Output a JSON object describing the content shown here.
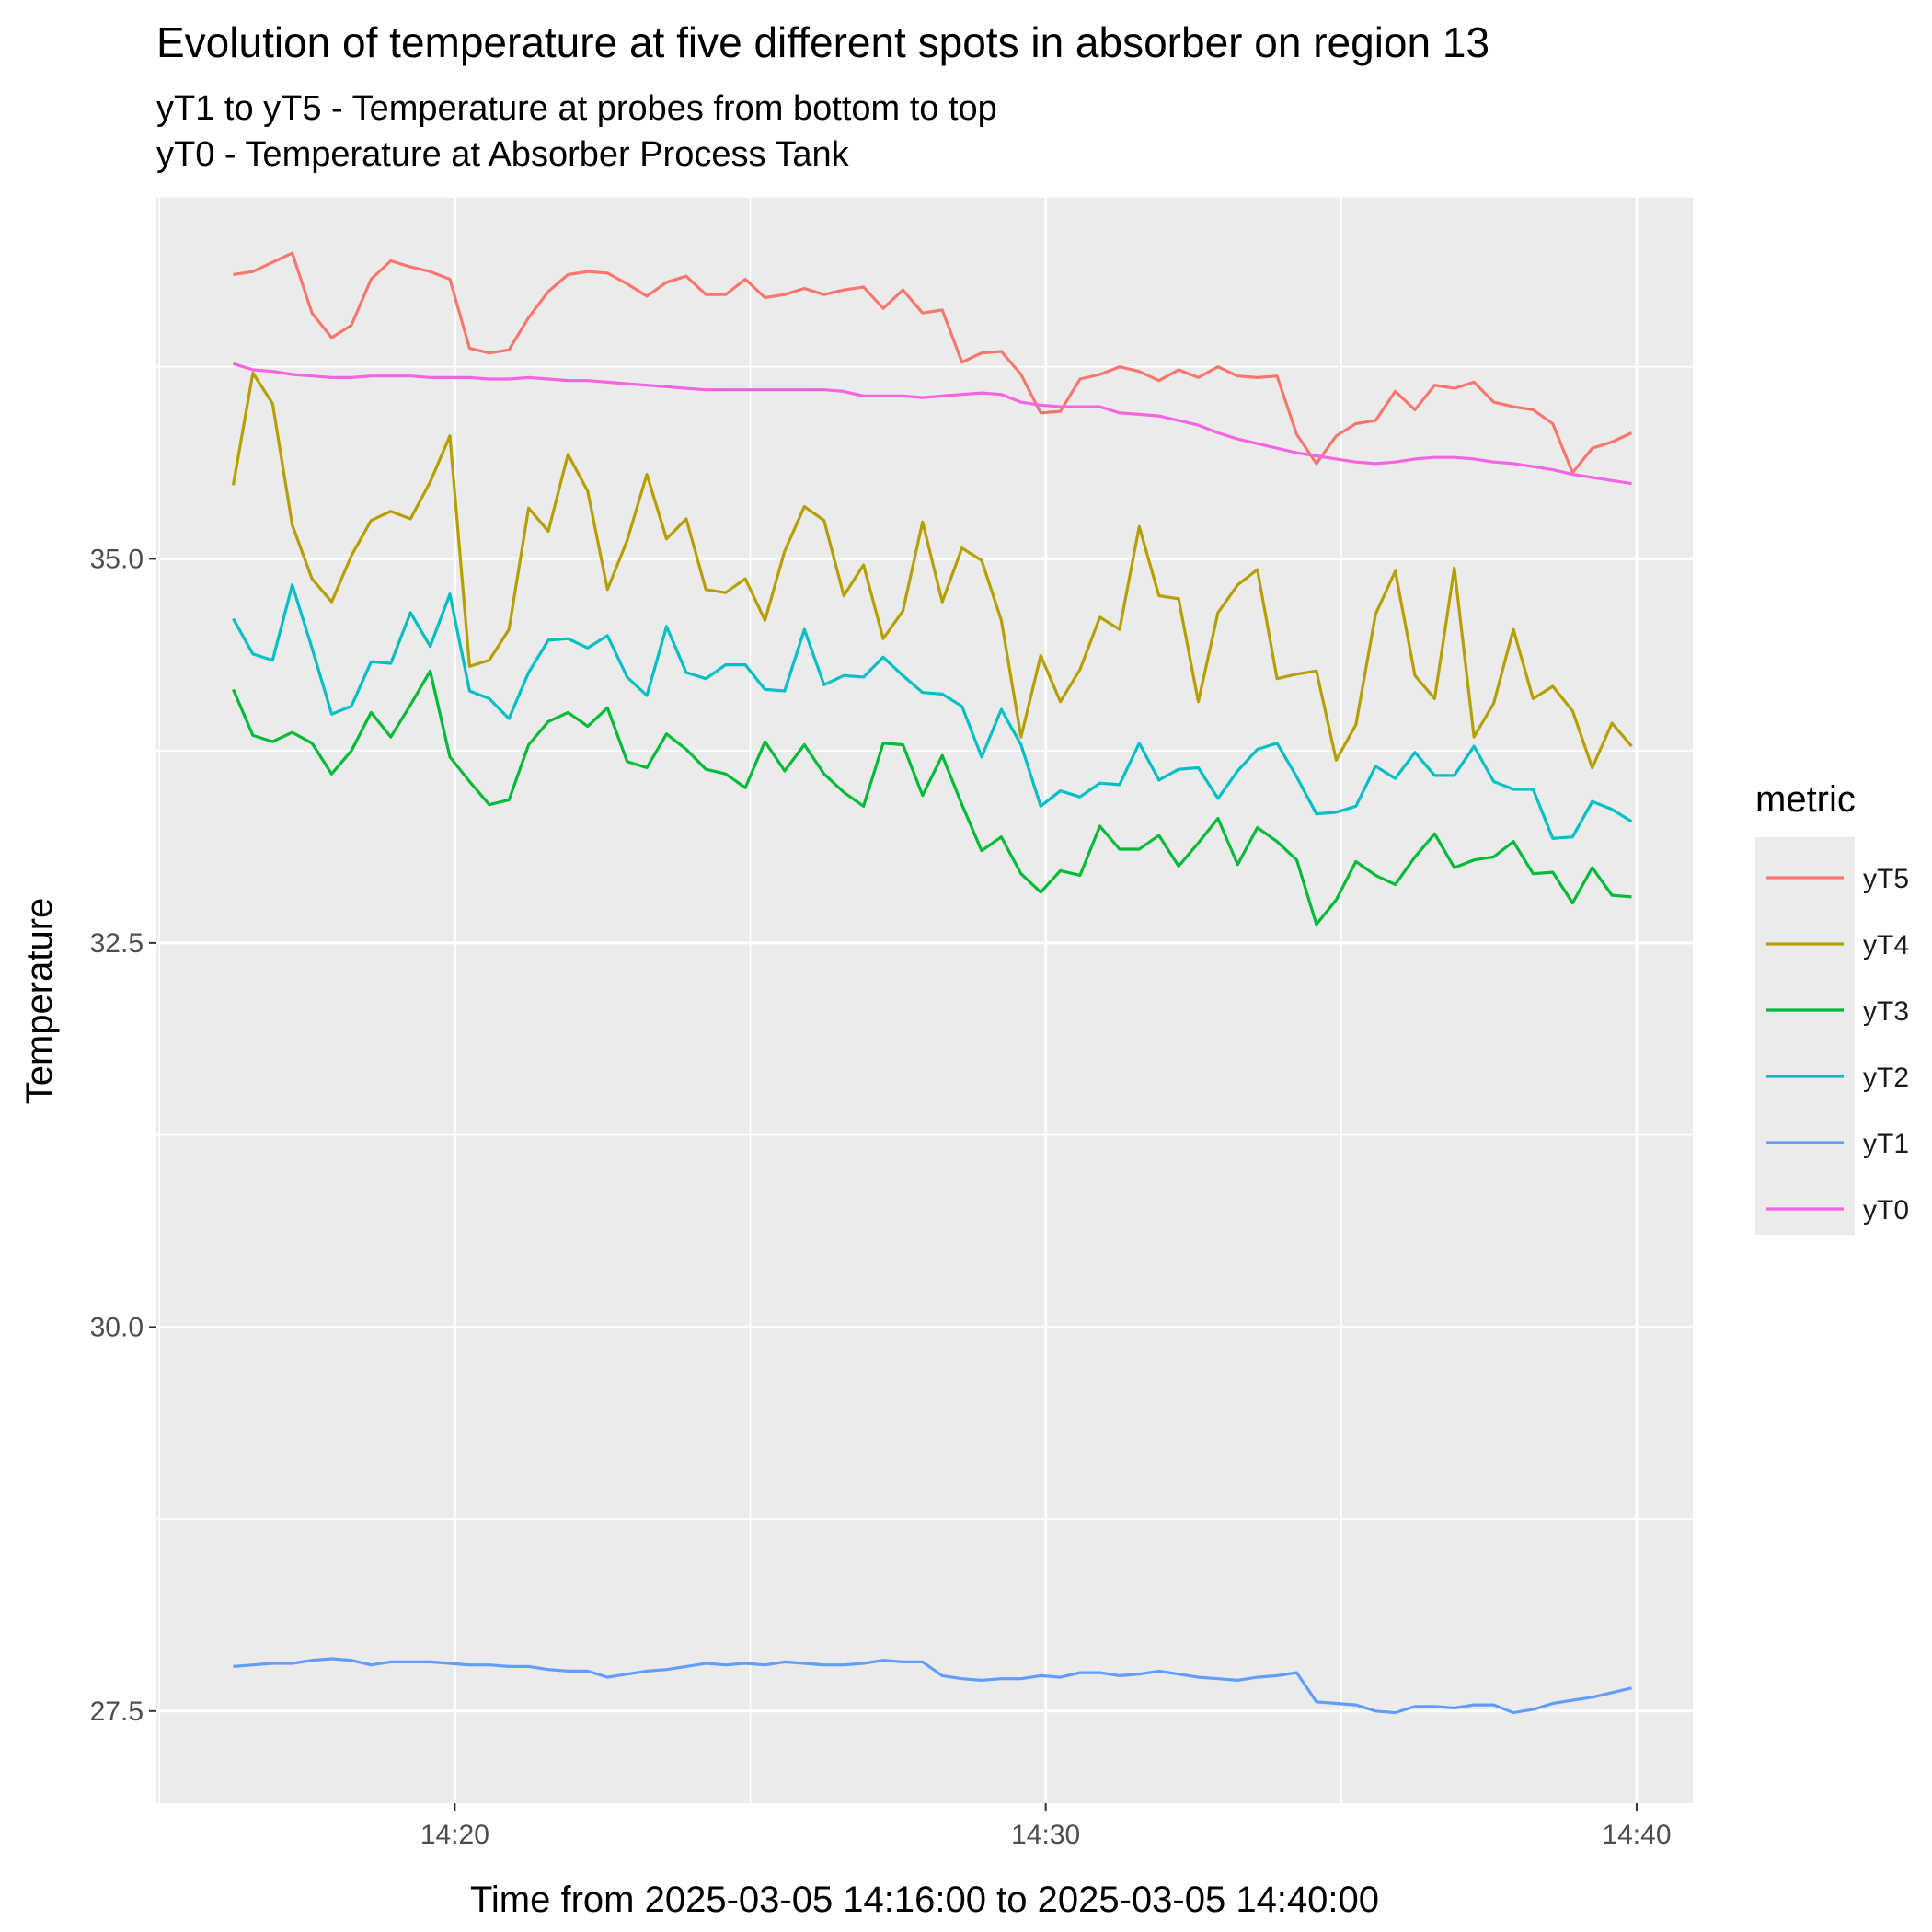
{
  "chart_data": {
    "type": "line",
    "title": "Evolution of temperature at five different spots in absorber on region 13",
    "subtitle_lines": [
      "yT1 to yT5 - Temperature at probes from bottom to top",
      "yT0 - Temperature at Absorber Process Tank"
    ],
    "xlabel": "Time from 2025-03-05 14:16:00 to 2025-03-05 14:40:00",
    "ylabel": "Temperature",
    "xlim_minutes": [
      14.95,
      40.95
    ],
    "xticks": [
      {
        "value": 20,
        "label": "14:20"
      },
      {
        "value": 30,
        "label": "14:30"
      },
      {
        "value": 40,
        "label": "14:40"
      }
    ],
    "ylim": [
      26.9,
      37.35
    ],
    "yticks": [
      {
        "value": 27.5,
        "label": "27.5"
      },
      {
        "value": 30.0,
        "label": "30.0"
      },
      {
        "value": 32.5,
        "label": "32.5"
      },
      {
        "value": 35.0,
        "label": "35.0"
      }
    ],
    "grid": true,
    "legend_title": "metric",
    "legend_position": "right",
    "x_start_minute": 16.25,
    "x_step_minute": 0.3333,
    "series": [
      {
        "name": "yT5",
        "color": "#F8766D",
        "values": [
          36.85,
          36.87,
          36.93,
          36.99,
          36.6,
          36.44,
          36.52,
          36.82,
          36.94,
          36.9,
          36.87,
          36.82,
          36.37,
          36.34,
          36.36,
          36.57,
          36.74,
          36.85,
          36.87,
          36.86,
          36.79,
          36.71,
          36.8,
          36.84,
          36.72,
          36.72,
          36.82,
          36.7,
          36.72,
          36.76,
          36.72,
          36.75,
          36.77,
          36.63,
          36.75,
          36.6,
          36.62,
          36.28,
          36.34,
          36.35,
          36.2,
          35.95,
          35.96,
          36.17,
          36.2,
          36.25,
          36.22,
          36.16,
          36.23,
          36.18,
          36.25,
          36.19,
          36.18,
          36.19,
          35.81,
          35.62,
          35.8,
          35.88,
          35.9,
          36.09,
          35.97,
          36.13,
          36.11,
          36.15,
          36.02,
          35.99,
          35.97,
          35.88,
          35.56,
          35.72,
          35.76,
          35.82
        ]
      },
      {
        "name": "yT4",
        "color": "#B79F00",
        "values": [
          35.48,
          36.21,
          36.01,
          35.22,
          34.87,
          34.72,
          35.02,
          35.25,
          35.31,
          35.26,
          35.5,
          35.8,
          34.3,
          34.34,
          34.54,
          35.33,
          35.18,
          35.68,
          35.44,
          34.8,
          35.12,
          35.55,
          35.13,
          35.26,
          34.8,
          34.78,
          34.87,
          34.6,
          35.05,
          35.34,
          35.25,
          34.76,
          34.96,
          34.48,
          34.66,
          35.24,
          34.72,
          35.07,
          34.99,
          34.6,
          33.84,
          34.37,
          34.07,
          34.28,
          34.62,
          34.54,
          35.21,
          34.76,
          34.74,
          34.07,
          34.65,
          34.83,
          34.93,
          34.22,
          34.25,
          34.27,
          33.69,
          33.92,
          34.64,
          34.92,
          34.24,
          34.09,
          34.94,
          33.84,
          34.06,
          34.54,
          34.09,
          34.17,
          34.01,
          33.64,
          33.93,
          33.78
        ]
      },
      {
        "name": "yT3",
        "color": "#00BA38",
        "values": [
          34.15,
          33.85,
          33.81,
          33.87,
          33.8,
          33.6,
          33.75,
          34.0,
          33.84,
          34.05,
          34.27,
          33.71,
          33.55,
          33.4,
          33.43,
          33.79,
          33.94,
          34.0,
          33.91,
          34.03,
          33.68,
          33.64,
          33.86,
          33.76,
          33.63,
          33.6,
          33.51,
          33.81,
          33.62,
          33.79,
          33.6,
          33.48,
          33.39,
          33.8,
          33.79,
          33.46,
          33.72,
          33.4,
          33.1,
          33.19,
          32.95,
          32.83,
          32.97,
          32.94,
          33.26,
          33.11,
          33.11,
          33.2,
          33.0,
          33.15,
          33.31,
          33.01,
          33.25,
          33.16,
          33.04,
          32.62,
          32.78,
          33.03,
          32.94,
          32.88,
          33.06,
          33.21,
          32.99,
          33.04,
          33.06,
          33.16,
          32.95,
          32.96,
          32.76,
          32.99,
          32.81,
          32.8
        ]
      },
      {
        "name": "yT2",
        "color": "#00BFC4",
        "values": [
          34.61,
          34.38,
          34.34,
          34.83,
          34.42,
          33.99,
          34.04,
          34.33,
          34.32,
          34.65,
          34.43,
          34.77,
          34.14,
          34.09,
          33.96,
          34.26,
          34.47,
          34.48,
          34.42,
          34.5,
          34.23,
          34.11,
          34.56,
          34.26,
          34.22,
          34.31,
          34.31,
          34.15,
          34.14,
          34.54,
          34.18,
          34.24,
          34.23,
          34.36,
          34.24,
          34.13,
          34.12,
          34.04,
          33.71,
          34.02,
          33.79,
          33.39,
          33.49,
          33.45,
          33.54,
          33.53,
          33.8,
          33.56,
          33.63,
          33.64,
          33.44,
          33.62,
          33.76,
          33.8,
          33.58,
          33.34,
          33.35,
          33.39,
          33.65,
          33.57,
          33.74,
          33.59,
          33.59,
          33.78,
          33.55,
          33.5,
          33.5,
          33.18,
          33.19,
          33.42,
          33.37,
          33.29
        ]
      },
      {
        "name": "yT1",
        "color": "#619CFF",
        "values": [
          27.79,
          27.8,
          27.81,
          27.81,
          27.83,
          27.84,
          27.83,
          27.8,
          27.82,
          27.82,
          27.82,
          27.81,
          27.8,
          27.8,
          27.79,
          27.79,
          27.77,
          27.76,
          27.76,
          27.72,
          27.74,
          27.76,
          27.77,
          27.79,
          27.81,
          27.8,
          27.81,
          27.8,
          27.82,
          27.81,
          27.8,
          27.8,
          27.81,
          27.83,
          27.82,
          27.82,
          27.73,
          27.71,
          27.7,
          27.71,
          27.71,
          27.73,
          27.72,
          27.75,
          27.75,
          27.73,
          27.74,
          27.76,
          27.74,
          27.72,
          27.71,
          27.7,
          27.72,
          27.73,
          27.75,
          27.56,
          27.55,
          27.54,
          27.5,
          27.49,
          27.53,
          27.53,
          27.52,
          27.54,
          27.54,
          27.49,
          27.51,
          27.55,
          27.57,
          27.59,
          27.62,
          27.65
        ]
      },
      {
        "name": "yT0",
        "color": "#F564E3",
        "values": [
          36.27,
          36.23,
          36.22,
          36.2,
          36.19,
          36.18,
          36.18,
          36.19,
          36.19,
          36.19,
          36.18,
          36.18,
          36.18,
          36.17,
          36.17,
          36.18,
          36.17,
          36.16,
          36.16,
          36.15,
          36.14,
          36.13,
          36.12,
          36.11,
          36.1,
          36.1,
          36.1,
          36.1,
          36.1,
          36.1,
          36.1,
          36.09,
          36.06,
          36.06,
          36.06,
          36.05,
          36.06,
          36.07,
          36.08,
          36.07,
          36.02,
          36.0,
          35.99,
          35.99,
          35.99,
          35.95,
          35.94,
          35.93,
          35.9,
          35.87,
          35.82,
          35.78,
          35.75,
          35.72,
          35.69,
          35.67,
          35.65,
          35.63,
          35.62,
          35.63,
          35.65,
          35.66,
          35.66,
          35.65,
          35.63,
          35.62,
          35.6,
          35.58,
          35.55,
          35.53,
          35.51,
          35.49
        ]
      }
    ]
  }
}
